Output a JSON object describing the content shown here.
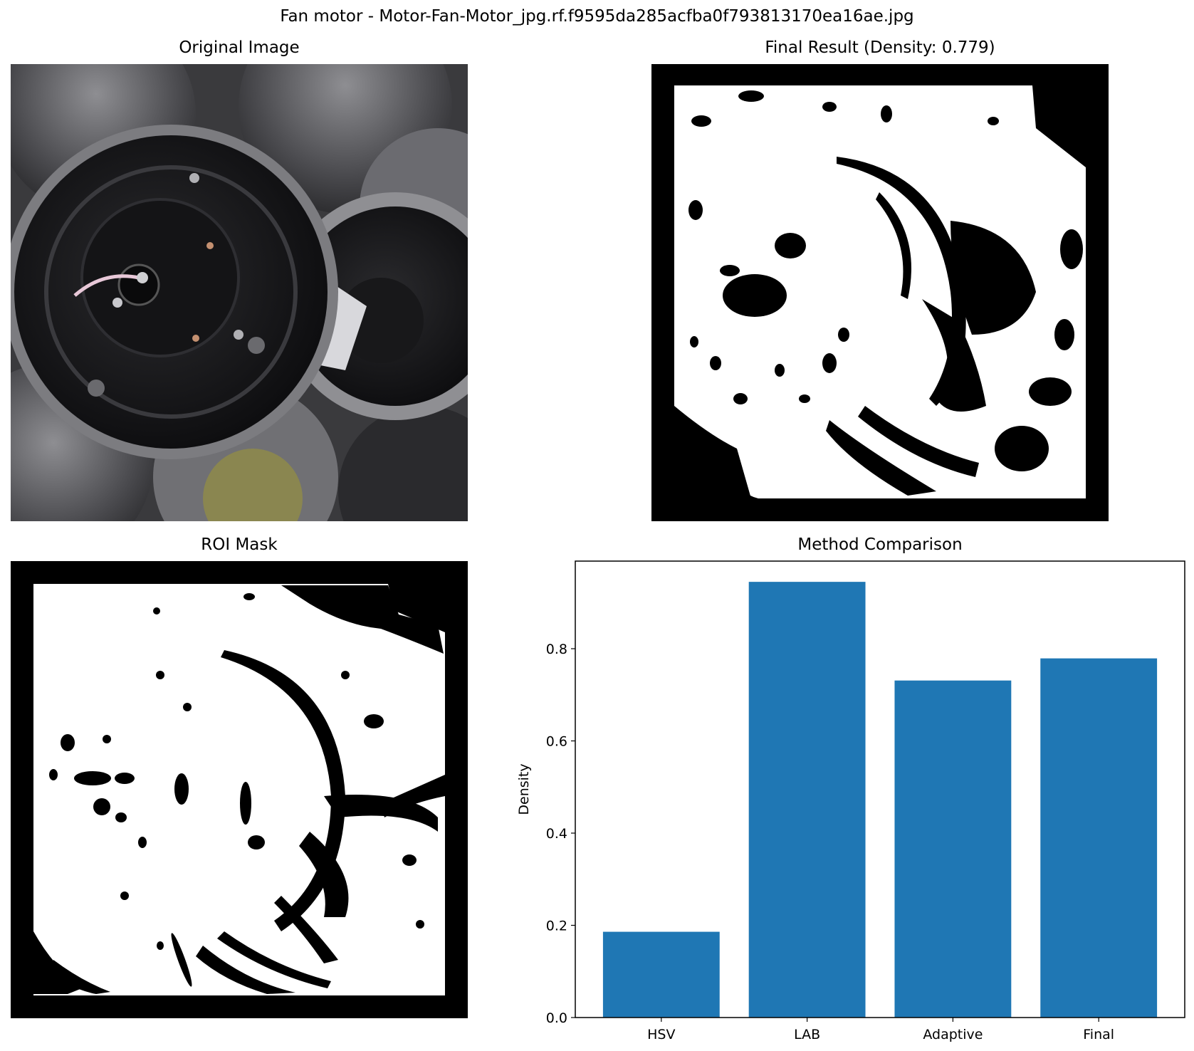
{
  "suptitle": "Fan motor - Motor-Fan-Motor_jpg.rf.f9595da285acfba0f793813170ea16ae.jpg",
  "panels": {
    "original": {
      "title": "Original Image"
    },
    "final": {
      "title": "Final Result (Density: 0.779)"
    },
    "roi": {
      "title": "ROI Mask"
    },
    "comparison": {
      "title": "Method Comparison"
    }
  },
  "chart_data": {
    "type": "bar",
    "title": "Method Comparison",
    "xlabel": "",
    "ylabel": "Density",
    "categories": [
      "HSV",
      "LAB",
      "Adaptive",
      "Final"
    ],
    "values": [
      0.186,
      0.945,
      0.731,
      0.779
    ],
    "ylim": [
      0.0,
      0.99
    ],
    "yticks": [
      "0.0",
      "0.2",
      "0.4",
      "0.6",
      "0.8"
    ],
    "ytick_values": [
      0.0,
      0.2,
      0.4,
      0.6,
      0.8
    ],
    "grid": false,
    "bar_color": "#1f77b4"
  },
  "colors": {
    "mask_fg": "#ffffff",
    "mask_bg": "#000000",
    "metal_dark": "#1a1a1c",
    "metal_light": "#9a9a9e"
  }
}
